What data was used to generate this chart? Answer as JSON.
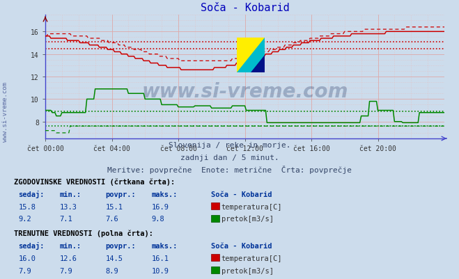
{
  "title": "Soča - Kobarid",
  "bg_color": "#ccdcec",
  "x_labels": [
    "čet 00:00",
    "čet 04:00",
    "čet 08:00",
    "čet 12:00",
    "čet 16:00",
    "čet 20:00"
  ],
  "x_ticks": [
    0,
    48,
    96,
    144,
    192,
    240
  ],
  "x_max": 288,
  "y_min": 6.5,
  "y_max": 17.5,
  "y_ticks": [
    8,
    10,
    12,
    14,
    16
  ],
  "temp_color": "#cc0000",
  "flow_color": "#008800",
  "subtitle1": "Slovenija / reke in morje.",
  "subtitle2": "zadnji dan / 5 minut.",
  "subtitle3": "Meritve: povprečne  Enote: metrične  Črta: povprečje",
  "watermark": "www.si-vreme.com",
  "hist_label": "ZGODOVINSKE VREDNOSTI (črtkana črta):",
  "curr_label": "TRENUTNE VREDNOSTI (polna črta):",
  "hist_temp": [
    15.8,
    13.3,
    15.1,
    16.9
  ],
  "hist_flow": [
    9.2,
    7.1,
    7.6,
    9.8
  ],
  "curr_temp": [
    16.0,
    12.6,
    14.5,
    16.1
  ],
  "curr_flow": [
    7.9,
    7.9,
    8.9,
    10.9
  ],
  "temp_avg_hist": 15.1,
  "temp_avg_curr": 14.5,
  "flow_avg_hist": 7.6,
  "flow_avg_curr": 8.9,
  "grid_color": "#ddbbbb",
  "spine_color": "#4444cc"
}
